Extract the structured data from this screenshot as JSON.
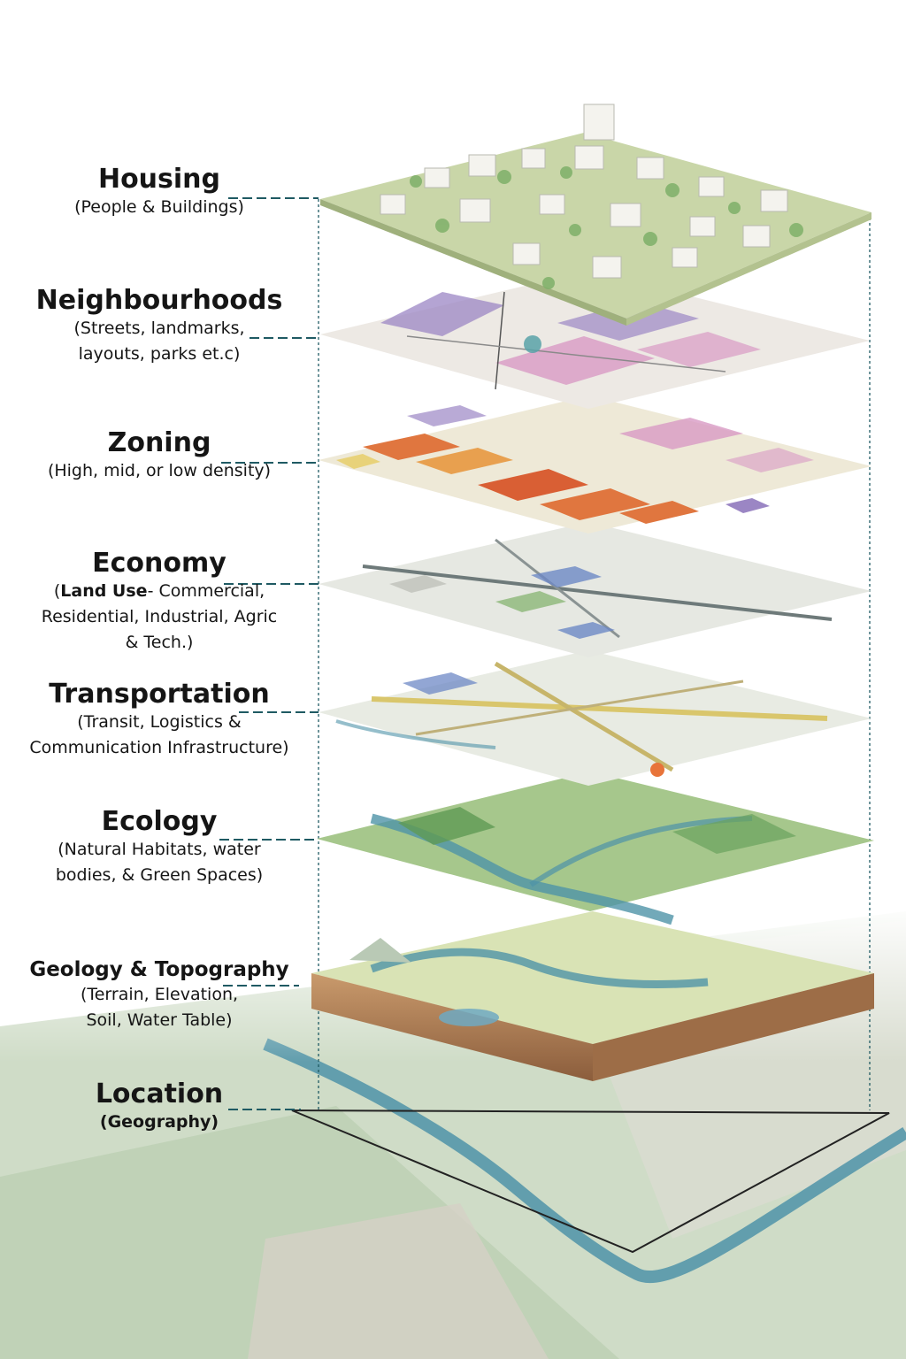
{
  "layers": [
    {
      "id": "housing",
      "title": "Housing",
      "subtitle_lines": [
        "(People & Buildings)"
      ]
    },
    {
      "id": "neighbourhoods",
      "title": "Neighbourhoods",
      "subtitle_lines": [
        "(Streets, landmarks,",
        "layouts, parks et.c)"
      ]
    },
    {
      "id": "zoning",
      "title": "Zoning",
      "subtitle_lines": [
        "(High, mid, or low density)"
      ]
    },
    {
      "id": "economy",
      "title": "Economy",
      "subtitle_prefix": "(",
      "subtitle_bold": "Land Use",
      "subtitle_rest": "- Commercial,",
      "subtitle_lines": [
        "Residential, Industrial, Agric",
        "& Tech.)"
      ]
    },
    {
      "id": "transportation",
      "title": "Transportation",
      "subtitle_lines": [
        "(Transit, Logistics &",
        "Communication Infrastructure)"
      ]
    },
    {
      "id": "ecology",
      "title": "Ecology",
      "subtitle_lines": [
        "(Natural Habitats, water",
        "bodies, & Green Spaces)"
      ]
    },
    {
      "id": "geology",
      "title": "Geology & Topography",
      "subtitle_lines": [
        "(Terrain, Elevation,",
        "Soil, Water Table)"
      ]
    },
    {
      "id": "location",
      "title": "Location",
      "subtitle_lines": [
        "(Geography)"
      ]
    }
  ],
  "colors": {
    "leader": "#1f5a63",
    "housing_base": "#c9d6a8",
    "neighbourhoods_purple": "#9b86c4",
    "neighbourhoods_pink": "#d89ac4",
    "zoning_orange": "#e0763f",
    "zoning_yellow": "#e8d27a",
    "economy_blue": "#6d88c6",
    "economy_gray": "#d9dcd8",
    "transport_yellow": "#d9c66c",
    "transport_node": "#e8743a",
    "ecology_green": "#7fb069",
    "river_blue": "#4f93a8",
    "terrain_brown": "#c08e62"
  }
}
